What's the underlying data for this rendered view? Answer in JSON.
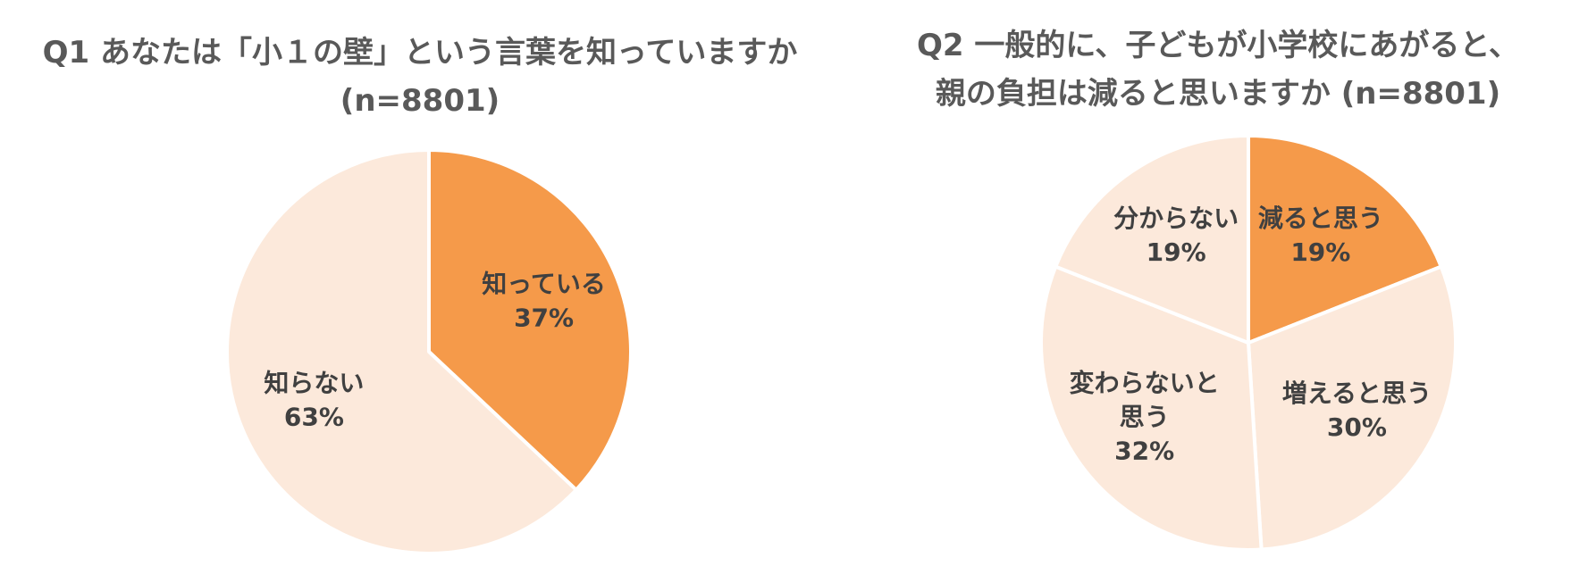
{
  "colors": {
    "highlight": "#F59A4A",
    "muted": "#FCE9DB",
    "separator": "#FFFFFF",
    "title_text": "#595959",
    "label_text": "#404040"
  },
  "chart_data": [
    {
      "type": "pie",
      "title": [
        "Q1 あなたは「小１の壁」という言葉を知っていますか",
        "(n=8801)"
      ],
      "start_angle_deg": 0,
      "direction": "clockwise",
      "slices": [
        {
          "label": [
            "知っている"
          ],
          "value": 37,
          "value_label": "37%",
          "color": "#F59A4A"
        },
        {
          "label": [
            "知らない"
          ],
          "value": 63,
          "value_label": "63%",
          "color": "#FCE9DB"
        }
      ]
    },
    {
      "type": "pie",
      "title": [
        "Q2 一般的に、子どもが小学校にあがると、",
        "親の負担は減ると思いますか (n=8801)"
      ],
      "start_angle_deg": 0,
      "direction": "clockwise",
      "slices": [
        {
          "label": [
            "減ると思う"
          ],
          "value": 19,
          "value_label": "19%",
          "color": "#F59A4A"
        },
        {
          "label": [
            "増えると思う"
          ],
          "value": 30,
          "value_label": "30%",
          "color": "#FCE9DB"
        },
        {
          "label": [
            "変わらないと",
            "思う"
          ],
          "value": 32,
          "value_label": "32%",
          "color": "#FCE9DB"
        },
        {
          "label": [
            "分からない"
          ],
          "value": 19,
          "value_label": "19%",
          "color": "#FCE9DB"
        }
      ]
    }
  ]
}
